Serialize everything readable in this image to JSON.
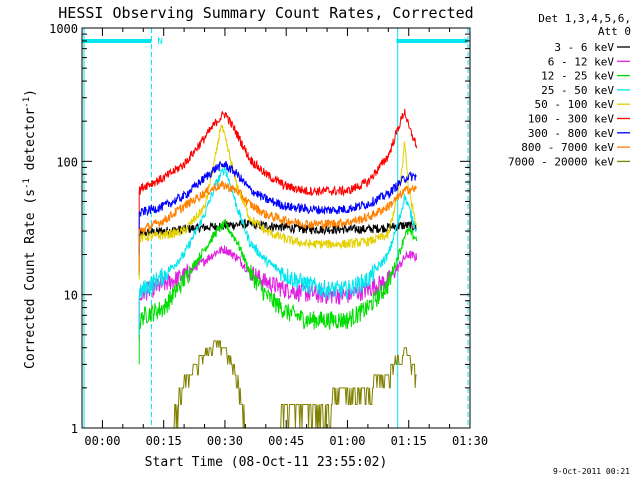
{
  "chart_data": {
    "type": "line",
    "title": "HESSI Observing Summary Count Rates, Corrected",
    "xlabel": "Start Time (08-Oct-11 23:55:02)",
    "ylabel_pre": "Corrected Count Rate (s",
    "ylabel_exp1": "-1",
    "ylabel_mid": " detector",
    "ylabel_exp2": "-1",
    "ylabel_post": ")",
    "y_scale": "log",
    "xlim": [
      0,
      95
    ],
    "ylim": [
      1,
      1000
    ],
    "x_ticks": [
      {
        "value": 5,
        "label": "00:00"
      },
      {
        "value": 20,
        "label": "00:15"
      },
      {
        "value": 35,
        "label": "00:30"
      },
      {
        "value": 50,
        "label": "00:45"
      },
      {
        "value": 65,
        "label": "01:00"
      },
      {
        "value": 80,
        "label": "01:15"
      },
      {
        "value": 95,
        "label": "01:30"
      }
    ],
    "y_ticks": [
      {
        "value": 1,
        "label": "1"
      },
      {
        "value": 10,
        "label": "10"
      },
      {
        "value": 100,
        "label": "100"
      },
      {
        "value": 1000,
        "label": "1000"
      }
    ],
    "legend_header": [
      "Det 1,3,4,5,6,",
      "Att 0"
    ],
    "legend_position": "right",
    "series": [
      {
        "name": "3 - 6 keV",
        "color": "#000000",
        "x": [
          14,
          15,
          20,
          25,
          30,
          35,
          40,
          45,
          50,
          55,
          60,
          65,
          70,
          75,
          78,
          80,
          82
        ],
        "y": [
          28,
          29,
          30,
          31,
          32,
          33,
          34,
          33,
          32,
          31,
          31,
          31,
          31,
          32,
          33,
          33,
          32
        ]
      },
      {
        "name": "6 - 12 keV",
        "color": "#e020e0",
        "x": [
          14,
          15,
          20,
          25,
          30,
          33,
          35,
          38,
          41,
          45,
          50,
          55,
          60,
          65,
          70,
          75,
          78,
          79,
          80,
          82
        ],
        "y": [
          9,
          10.5,
          12,
          14,
          18,
          21,
          22,
          19,
          15,
          12.5,
          11,
          10.3,
          10,
          10,
          11,
          13,
          17,
          19,
          20,
          19
        ]
      },
      {
        "name": "12 - 25 keV",
        "color": "#00dd00",
        "x": [
          14,
          15,
          20,
          25,
          30,
          33,
          35,
          38,
          41,
          45,
          50,
          55,
          60,
          65,
          70,
          75,
          78,
          79,
          80,
          82
        ],
        "y": [
          6,
          7,
          8,
          13,
          22,
          30,
          34,
          25,
          15,
          10,
          7.5,
          6.5,
          6.5,
          6.5,
          8,
          12,
          22,
          28,
          30,
          26
        ]
      },
      {
        "name": "25 - 50 keV",
        "color": "#00e5ee",
        "x": [
          14,
          15,
          20,
          25,
          30,
          33,
          35,
          38,
          41,
          45,
          50,
          55,
          60,
          65,
          70,
          75,
          78,
          79,
          80,
          82
        ],
        "y": [
          10,
          11,
          14,
          20,
          40,
          70,
          90,
          45,
          25,
          18,
          14,
          12,
          11,
          11,
          13,
          20,
          40,
          55,
          45,
          30
        ]
      },
      {
        "name": "50 - 100 keV",
        "color": "#e5d000",
        "x": [
          14,
          15,
          20,
          25,
          30,
          33,
          34,
          35,
          38,
          41,
          45,
          50,
          55,
          60,
          65,
          70,
          75,
          78,
          79,
          80,
          82
        ],
        "y": [
          26,
          27,
          28,
          30,
          45,
          120,
          190,
          150,
          65,
          38,
          30,
          26,
          24,
          24,
          24,
          25,
          28,
          70,
          140,
          60,
          33
        ]
      },
      {
        "name": "100 - 300 keV",
        "color": "#ff0000",
        "x": [
          14,
          15,
          20,
          25,
          30,
          33,
          35,
          38,
          41,
          45,
          50,
          55,
          60,
          65,
          70,
          75,
          78,
          79,
          80,
          82
        ],
        "y": [
          60,
          65,
          75,
          95,
          150,
          200,
          230,
          160,
          105,
          80,
          65,
          60,
          60,
          60,
          70,
          110,
          200,
          240,
          180,
          130
        ]
      },
      {
        "name": "300 - 800 keV",
        "color": "#0000ff",
        "x": [
          14,
          15,
          20,
          25,
          30,
          33,
          35,
          38,
          41,
          45,
          50,
          55,
          60,
          65,
          70,
          75,
          78,
          79,
          80,
          82
        ],
        "y": [
          40,
          42,
          46,
          55,
          75,
          90,
          95,
          80,
          62,
          52,
          46,
          44,
          43,
          44,
          48,
          57,
          70,
          75,
          77,
          77
        ]
      },
      {
        "name": "800 - 7000 keV",
        "color": "#ff8000",
        "x": [
          14,
          15,
          20,
          25,
          30,
          33,
          35,
          38,
          41,
          45,
          50,
          55,
          60,
          65,
          70,
          75,
          78,
          79,
          80,
          82
        ],
        "y": [
          30,
          31,
          36,
          46,
          58,
          65,
          66,
          60,
          48,
          40,
          36,
          34,
          34,
          35,
          38,
          46,
          56,
          60,
          62,
          62
        ]
      },
      {
        "name": "7000 - 20000 keV",
        "color": "#808000",
        "x": [
          22,
          23,
          24,
          26,
          28,
          29,
          31,
          33,
          35,
          36,
          37,
          38,
          39,
          40,
          75,
          76,
          77,
          78,
          79,
          80,
          81,
          82
        ],
        "y": [
          1,
          1.5,
          2,
          2.5,
          3,
          3.5,
          4,
          4.5,
          4,
          3.5,
          3,
          2.5,
          2,
          1,
          2.5,
          3,
          3.5,
          3,
          4,
          3.5,
          3,
          2.5
        ]
      }
    ],
    "annotations": [
      {
        "text": "N",
        "color": "#00e5ee"
      }
    ],
    "status_bars": [
      {
        "x0": 0,
        "x1": 17,
        "color": "#00e5ee"
      },
      {
        "x0": 77,
        "x1": 94.5,
        "color": "#00e5ee"
      }
    ],
    "vlines": [
      {
        "x": 17,
        "color": "#00e5ee",
        "style": "dashed"
      },
      {
        "x": 77.3,
        "color": "#00e5ee",
        "style": "solid"
      },
      {
        "x": 94.5,
        "color": "#00e5ee",
        "style": "dashed"
      }
    ],
    "first_plot_time": 0.5
  },
  "footer_timestamp": "9-Oct-2011 00:21"
}
